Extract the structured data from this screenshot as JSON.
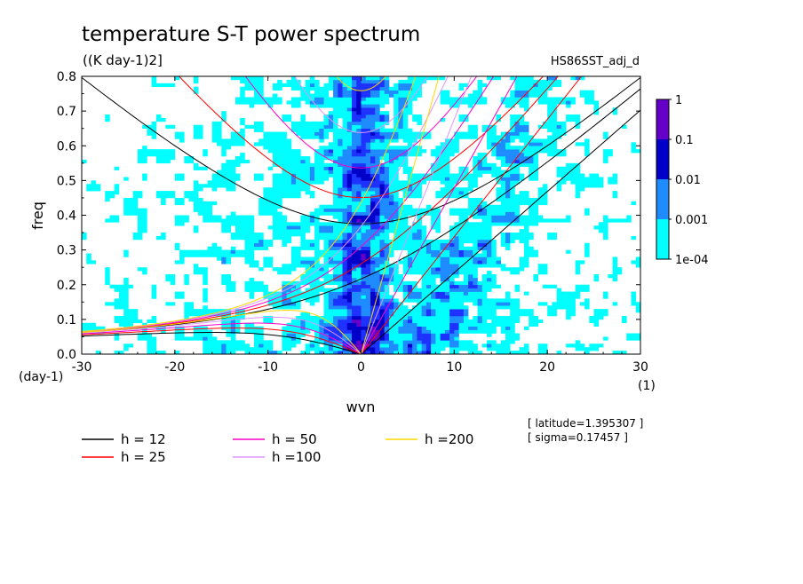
{
  "chart_data": {
    "type": "heatmap",
    "title": "temperature S-T power spectrum",
    "units": "((K day-1)2]",
    "run_name": "HS86SST_adj_d",
    "xlabel": "wvn",
    "ylabel": "freq",
    "x_unit_label": "(1)",
    "y_unit_label": "(day-1)",
    "xlim": [
      -30,
      30
    ],
    "ylim": [
      0,
      0.8
    ],
    "x_ticks": [
      "-30",
      "-20",
      "-10",
      "0",
      "10",
      "20",
      "30"
    ],
    "y_ticks": [
      "0.0",
      "0.1",
      "0.2",
      "0.3",
      "0.4",
      "0.5",
      "0.6",
      "0.7",
      "0.8"
    ],
    "contour_levels": [
      "1e-04",
      "0.001",
      "0.01",
      "0.1",
      "1"
    ],
    "level_colors": [
      "#00ffff",
      "#1e8cff",
      "#1e32ff",
      "#0000c8",
      "#6400c8"
    ],
    "dispersion_curves": [
      {
        "label": "h = 12",
        "color": "#000000"
      },
      {
        "label": "h = 25",
        "color": "#ff0000"
      },
      {
        "label": "h = 50",
        "color": "#ff00c8"
      },
      {
        "label": "h =100",
        "color": "#dc96ff"
      },
      {
        "label": "h =200",
        "color": "#ffd700"
      }
    ],
    "info": [
      "[ latitude=1.395307 ]",
      "[ sigma=0.17457 ]"
    ],
    "grid": false
  }
}
